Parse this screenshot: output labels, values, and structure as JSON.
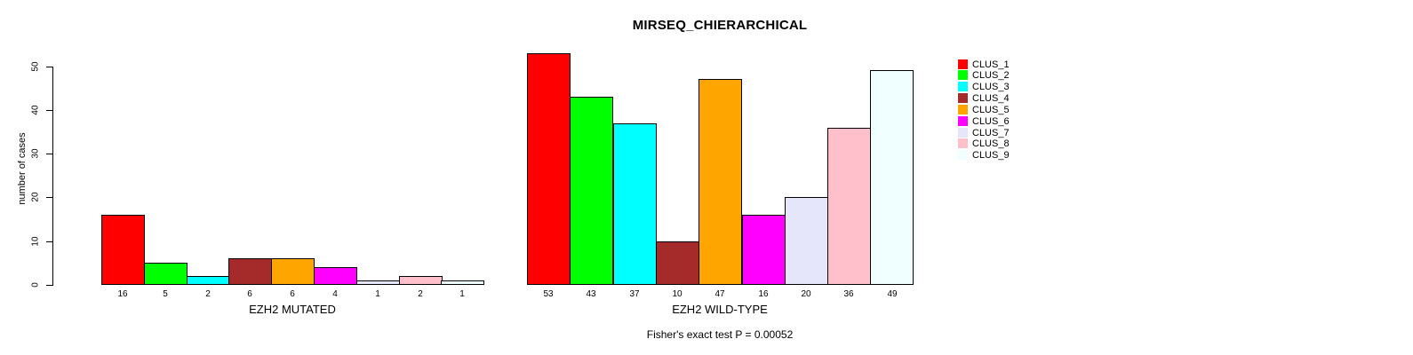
{
  "title": "MIRSEQ_CHIERARCHICAL",
  "footer": "Fisher's exact test P = 0.00052",
  "chart_data": {
    "type": "bar",
    "title": "MIRSEQ_CHIERARCHICAL",
    "ylabel": "number of cases",
    "ylim": [
      0,
      50
    ],
    "yticks": [
      0,
      10,
      20,
      30,
      40,
      50
    ],
    "grid": false,
    "series_colors": [
      "#FF0000",
      "#00FF00",
      "#00FFFF",
      "#A52A2A",
      "#FFA500",
      "#FF00FF",
      "#E6E6FA",
      "#FFC0CB",
      "#F0FFFF"
    ],
    "groups": [
      {
        "xlabel": "EZH2 MUTATED",
        "values": [
          16,
          5,
          2,
          6,
          6,
          4,
          1,
          2,
          1
        ]
      },
      {
        "xlabel": "EZH2 WILD-TYPE",
        "values": [
          53,
          43,
          37,
          10,
          47,
          16,
          20,
          36,
          49
        ]
      }
    ],
    "legend": {
      "position": "right",
      "entries": [
        {
          "label": "CLUS_1"
        },
        {
          "label": "CLUS_2"
        },
        {
          "label": "CLUS_3"
        },
        {
          "label": "CLUS_4"
        },
        {
          "label": "CLUS_5"
        },
        {
          "label": "CLUS_6"
        },
        {
          "label": "CLUS_7"
        },
        {
          "label": "CLUS_8"
        },
        {
          "label": "CLUS_9"
        }
      ]
    },
    "annotation": "Fisher's exact test P = 0.00052"
  }
}
